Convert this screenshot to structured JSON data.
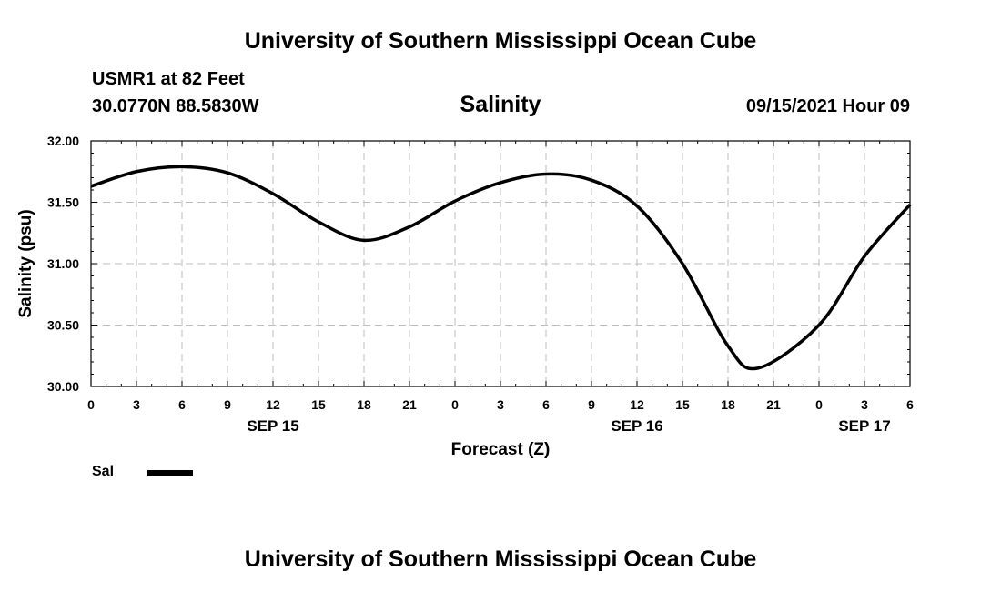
{
  "header": {
    "title": "University of Southern Mississippi Ocean Cube",
    "station": "USMR1 at 82 Feet",
    "coordinates": "30.0770N  88.5830W",
    "variable": "Salinity",
    "datetime": "09/15/2021 Hour 09"
  },
  "footer": {
    "title": "University of Southern Mississippi Ocean Cube"
  },
  "chart_data": {
    "type": "line",
    "title": "Salinity",
    "xlabel": "Forecast (Z)",
    "ylabel": "Salinity (psu)",
    "xlim": [
      0,
      54
    ],
    "ylim": [
      30.0,
      32.0
    ],
    "yticks": [
      30.0,
      30.5,
      31.0,
      31.5,
      32.0
    ],
    "ytick_labels": [
      "30.00",
      "30.50",
      "31.00",
      "31.50",
      "32.00"
    ],
    "xtick_labels": [
      "0",
      "3",
      "6",
      "9",
      "12",
      "15",
      "18",
      "21",
      "0",
      "3",
      "6",
      "9",
      "12",
      "15",
      "18",
      "21",
      "0",
      "3",
      "6"
    ],
    "date_labels": [
      {
        "hour": 12,
        "label": "SEP 15"
      },
      {
        "hour": 36,
        "label": "SEP 16"
      },
      {
        "hour": 51,
        "label": "SEP 17"
      }
    ],
    "grid": true,
    "legend": [
      {
        "name": "Sal",
        "color": "#000000"
      }
    ],
    "series": [
      {
        "name": "Sal",
        "color": "#000000",
        "x": [
          0,
          3,
          6,
          9,
          12,
          15,
          18,
          21,
          24,
          27,
          30,
          33,
          36,
          39,
          42,
          44,
          48,
          51,
          54
        ],
        "values": [
          31.63,
          31.75,
          31.79,
          31.74,
          31.57,
          31.34,
          31.19,
          31.3,
          31.51,
          31.66,
          31.73,
          31.68,
          31.47,
          31.0,
          30.33,
          30.15,
          30.5,
          31.06,
          31.48
        ]
      }
    ]
  }
}
